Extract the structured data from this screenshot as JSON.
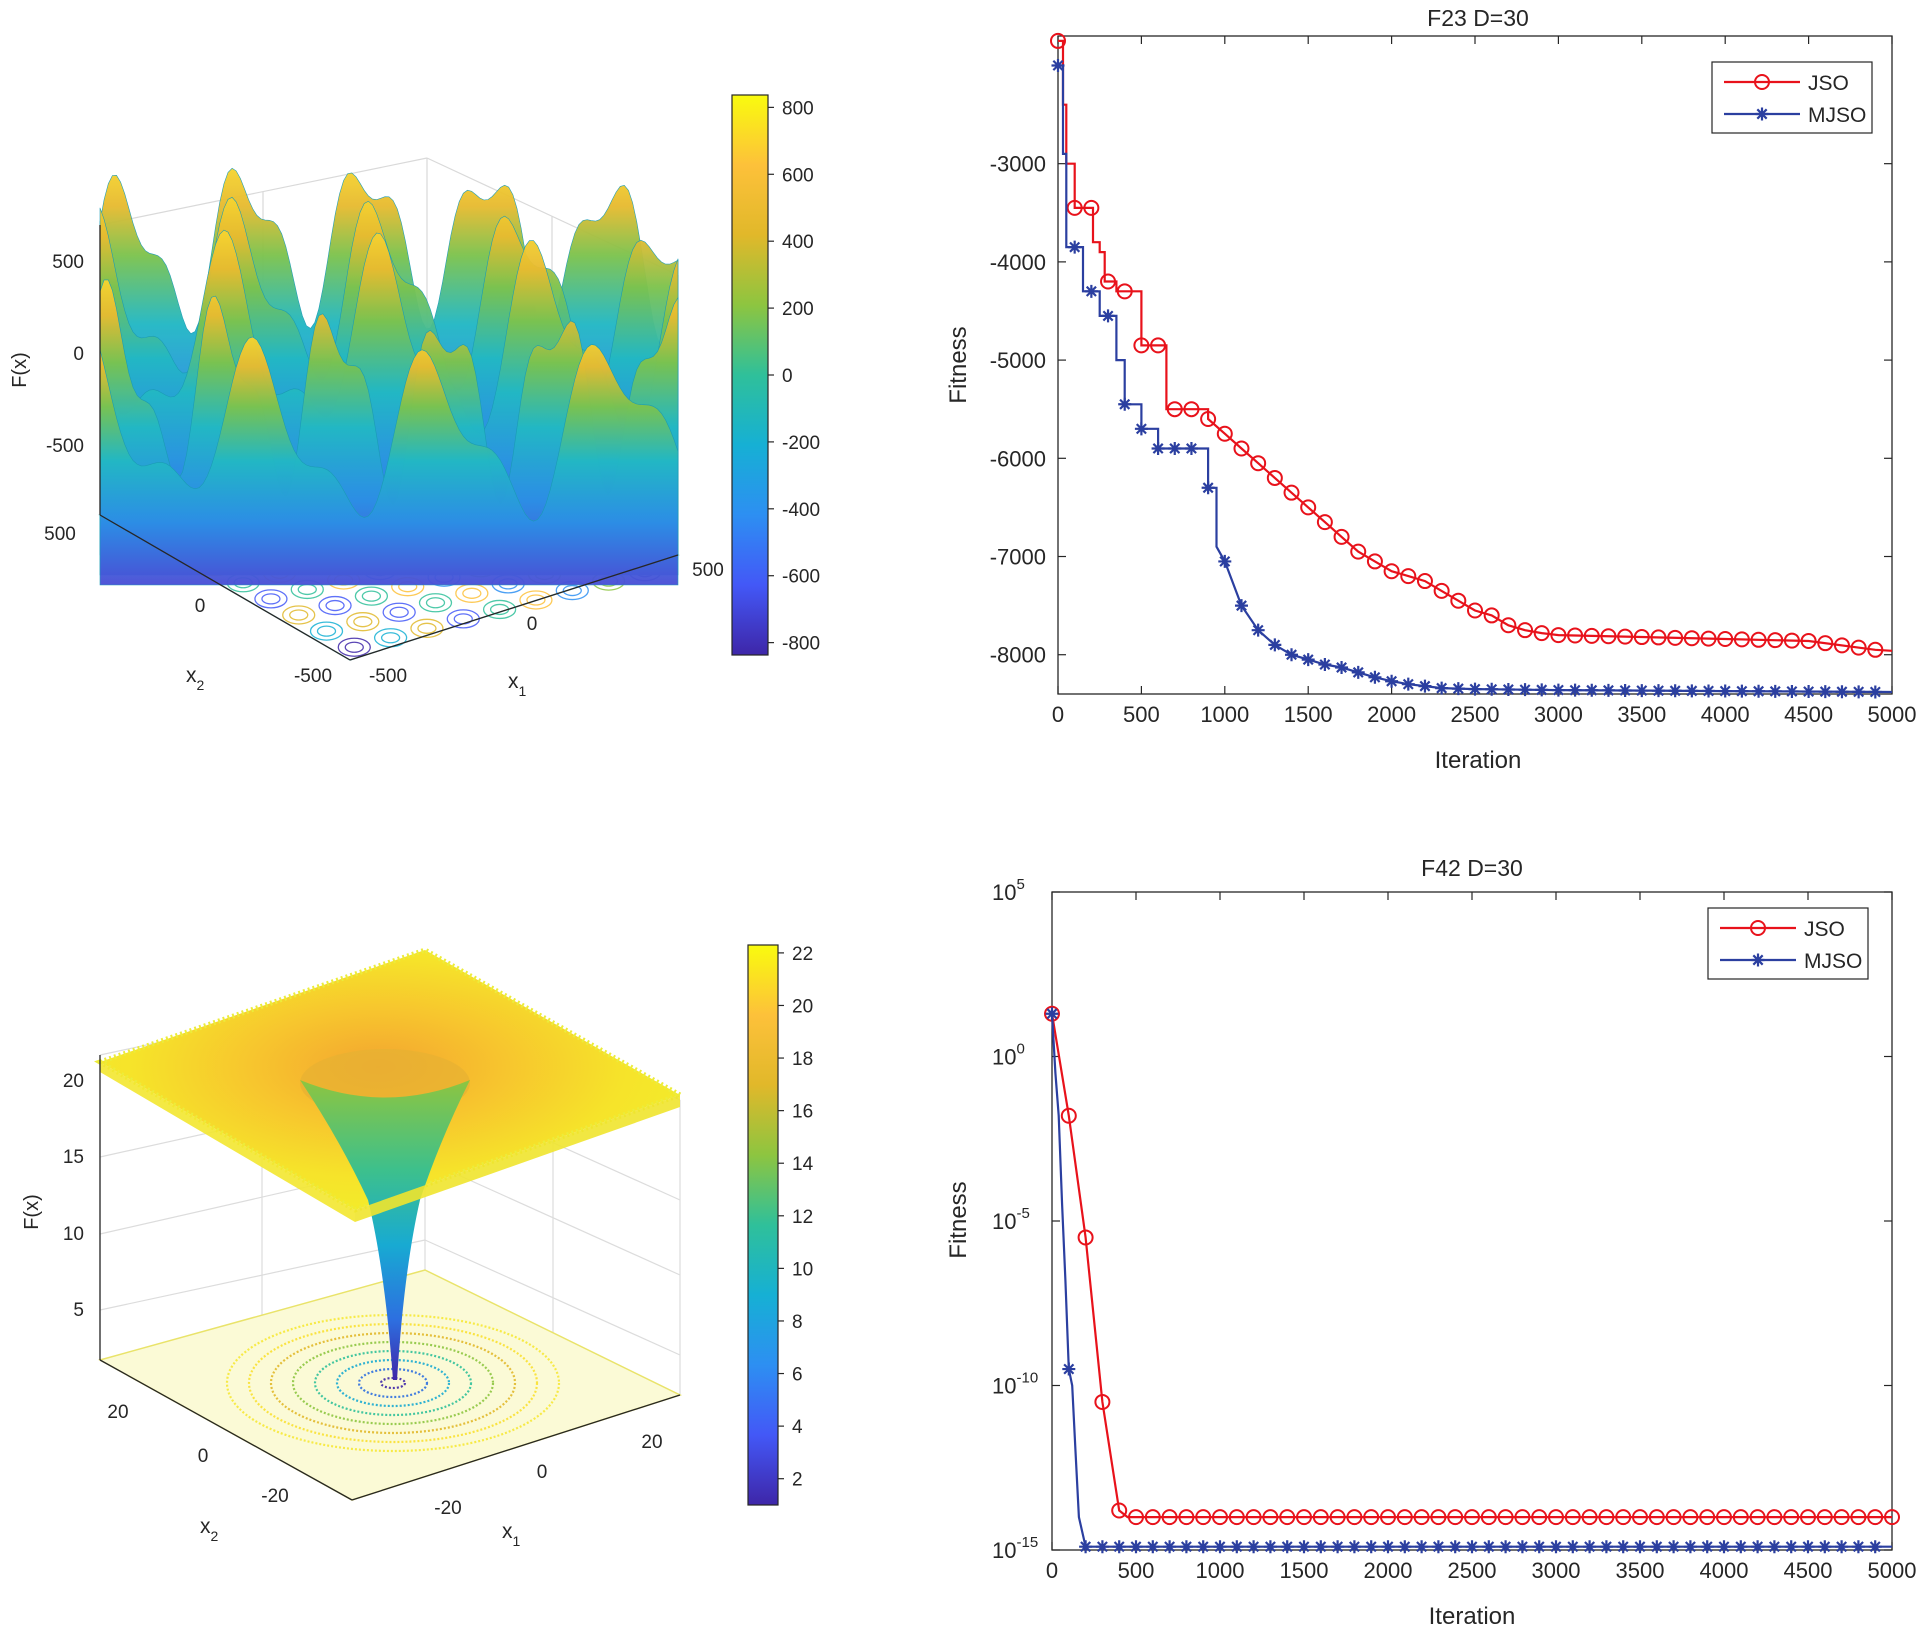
{
  "chart_data": [
    {
      "type": "surface",
      "id": "surface-f23",
      "zlabel": "F(x)",
      "xlabel": "x",
      "xlabel_sub": "1",
      "ylabel": "x",
      "ylabel_sub": "2",
      "x_ticks": [
        "-500",
        "0",
        "500"
      ],
      "y_ticks": [
        "-500",
        "0",
        "500"
      ],
      "z_ticks": [
        "-500",
        "0",
        "500"
      ],
      "colorbar_ticks": [
        "800",
        "600",
        "400",
        "200",
        "0",
        "-200",
        "-400",
        "-600",
        "-800"
      ],
      "colorbar_range": [
        -837,
        837
      ],
      "colormap": [
        "#3e26a8",
        "#4358f7",
        "#2d8ff2",
        "#16b0d4",
        "#2fc09a",
        "#8dc540",
        "#e1b82a",
        "#fdc13a",
        "#f9fb0e"
      ]
    },
    {
      "type": "line",
      "id": "line-f23",
      "title": "F23 D=30",
      "xlabel": "Iteration",
      "ylabel": "Fitness",
      "xlim": [
        0,
        5000
      ],
      "ylim": [
        -8400,
        -1700
      ],
      "x_ticks": [
        "0",
        "500",
        "1000",
        "1500",
        "2000",
        "2500",
        "3000",
        "3500",
        "4000",
        "4500",
        "5000"
      ],
      "y_ticks": [
        "-3000",
        "-4000",
        "-5000",
        "-6000",
        "-7000",
        "-8000"
      ],
      "legend": {
        "placement": "top-right"
      },
      "series": [
        {
          "name": "JSO",
          "color": "#e8121b",
          "marker": "circle",
          "x": [
            0,
            30,
            30,
            50,
            50,
            100,
            100,
            210,
            210,
            250,
            250,
            280,
            280,
            350,
            350,
            500,
            500,
            650,
            650,
            700,
            700,
            900,
            900,
            1000,
            1100,
            1200,
            1300,
            1400,
            1500,
            1600,
            1700,
            1800,
            1900,
            2000,
            2100,
            2200,
            2300,
            2400,
            2500,
            2600,
            2700,
            2800,
            2900,
            3000,
            3500,
            4000,
            4500,
            4900,
            5000
          ],
          "y": [
            -1750,
            -1750,
            -2400,
            -2400,
            -3000,
            -3000,
            -3450,
            -3450,
            -3800,
            -3800,
            -3900,
            -3900,
            -4200,
            -4200,
            -4300,
            -4300,
            -4850,
            -4850,
            -5500,
            -5500,
            -5500,
            -5500,
            -5600,
            -5750,
            -5900,
            -6050,
            -6200,
            -6350,
            -6500,
            -6650,
            -6800,
            -6950,
            -7050,
            -7150,
            -7200,
            -7250,
            -7350,
            -7450,
            -7550,
            -7600,
            -7700,
            -7750,
            -7780,
            -7800,
            -7820,
            -7840,
            -7860,
            -7950,
            -7960
          ],
          "marker_x": [
            0,
            100,
            200,
            300,
            400,
            500,
            600,
            700,
            800,
            900,
            1000,
            1100,
            1200,
            1300,
            1400,
            1500,
            1600,
            1700,
            1800,
            1900,
            2000,
            2100,
            2200,
            2300,
            2400,
            2500,
            2600,
            2700,
            2800,
            2900,
            3000,
            3100,
            3200,
            3300,
            3400,
            3500,
            3600,
            3700,
            3800,
            3900,
            4000,
            4100,
            4200,
            4300,
            4400,
            4500,
            4600,
            4700,
            4800,
            4900
          ]
        },
        {
          "name": "MJSO",
          "color": "#2b3fa0",
          "marker": "star",
          "x": [
            0,
            30,
            30,
            50,
            50,
            150,
            150,
            250,
            250,
            350,
            350,
            400,
            400,
            500,
            500,
            600,
            600,
            900,
            900,
            950,
            950,
            1000,
            1100,
            1200,
            1300,
            1400,
            1500,
            1600,
            1700,
            1800,
            1900,
            2000,
            2100,
            2200,
            2300,
            2500,
            3000,
            4000,
            5000
          ],
          "y": [
            -2000,
            -2000,
            -2900,
            -2900,
            -3850,
            -3850,
            -4300,
            -4300,
            -4550,
            -4550,
            -5000,
            -5000,
            -5450,
            -5450,
            -5700,
            -5700,
            -5900,
            -5900,
            -6300,
            -6300,
            -6900,
            -7050,
            -7500,
            -7750,
            -7900,
            -8000,
            -8050,
            -8100,
            -8130,
            -8180,
            -8230,
            -8270,
            -8300,
            -8320,
            -8340,
            -8350,
            -8360,
            -8370,
            -8380
          ],
          "marker_x": [
            0,
            100,
            200,
            300,
            400,
            500,
            600,
            700,
            800,
            900,
            1000,
            1100,
            1200,
            1300,
            1400,
            1500,
            1600,
            1700,
            1800,
            1900,
            2000,
            2100,
            2200,
            2300,
            2400,
            2500,
            2600,
            2700,
            2800,
            2900,
            3000,
            3100,
            3200,
            3300,
            3400,
            3500,
            3600,
            3700,
            3800,
            3900,
            4000,
            4100,
            4200,
            4300,
            4400,
            4500,
            4600,
            4700,
            4800,
            4900
          ]
        }
      ]
    },
    {
      "type": "surface",
      "id": "surface-f42",
      "zlabel": "F(x)",
      "xlabel": "x",
      "xlabel_sub": "1",
      "ylabel": "x",
      "ylabel_sub": "2",
      "x_ticks": [
        "-20",
        "0",
        "20"
      ],
      "y_ticks": [
        "-20",
        "0",
        "20"
      ],
      "z_ticks": [
        "5",
        "10",
        "15",
        "20"
      ],
      "colorbar_ticks": [
        "22",
        "20",
        "18",
        "16",
        "14",
        "12",
        "10",
        "8",
        "6",
        "4",
        "2"
      ],
      "colorbar_range": [
        1,
        22.3
      ],
      "colormap": [
        "#3e26a8",
        "#4358f7",
        "#2d8ff2",
        "#16b0d4",
        "#2fc09a",
        "#8dc540",
        "#e1b82a",
        "#fdc13a",
        "#f9fb0e"
      ]
    },
    {
      "type": "line",
      "id": "line-f42",
      "title": "F42 D=30",
      "xlabel": "Iteration",
      "ylabel": "Fitness",
      "yscale": "log",
      "xlim": [
        0,
        5000
      ],
      "ylim_log10": [
        -15,
        5
      ],
      "x_ticks": [
        "0",
        "500",
        "1000",
        "1500",
        "2000",
        "2500",
        "3000",
        "3500",
        "4000",
        "4500",
        "5000"
      ],
      "y_ticks": [
        {
          "base": "10",
          "exp": "5"
        },
        {
          "base": "10",
          "exp": "0"
        },
        {
          "base": "10",
          "exp": "-5"
        },
        {
          "base": "10",
          "exp": "-10"
        },
        {
          "base": "10",
          "exp": "-15"
        }
      ],
      "legend": {
        "placement": "top-right"
      },
      "series": [
        {
          "name": "JSO",
          "color": "#e8121b",
          "marker": "circle",
          "x": [
            0,
            100,
            200,
            300,
            400,
            450,
            500,
            5000
          ],
          "log10_y": [
            1.3,
            -1.8,
            -5.5,
            -10.5,
            -13.8,
            -14.0,
            -14.0,
            -14.0
          ],
          "marker_x": [
            0,
            100,
            200,
            300,
            400,
            500,
            600,
            700,
            800,
            900,
            1000,
            1100,
            1200,
            1300,
            1400,
            1500,
            1600,
            1700,
            1800,
            1900,
            2000,
            2100,
            2200,
            2300,
            2400,
            2500,
            2600,
            2700,
            2800,
            2900,
            3000,
            3100,
            3200,
            3300,
            3400,
            3500,
            3600,
            3700,
            3800,
            3900,
            4000,
            4100,
            4200,
            4300,
            4400,
            4500,
            4600,
            4700,
            4800,
            4900,
            5000
          ]
        },
        {
          "name": "MJSO",
          "color": "#2b3fa0",
          "marker": "star",
          "x": [
            0,
            20,
            20,
            40,
            40,
            60,
            80,
            100,
            120,
            140,
            160,
            200,
            5000
          ],
          "log10_y": [
            1.3,
            -0.5,
            -0.5,
            -1.8,
            -1.8,
            -4.5,
            -6.8,
            -9.5,
            -10.0,
            -12.0,
            -14.0,
            -14.9,
            -14.9
          ],
          "marker_x": [
            0,
            100,
            200,
            300,
            400,
            500,
            600,
            700,
            800,
            900,
            1000,
            1100,
            1200,
            1300,
            1400,
            1500,
            1600,
            1700,
            1800,
            1900,
            2000,
            2100,
            2200,
            2300,
            2400,
            2500,
            2600,
            2700,
            2800,
            2900,
            3000,
            3100,
            3200,
            3300,
            3400,
            3500,
            3600,
            3700,
            3800,
            3900,
            4000,
            4100,
            4200,
            4300,
            4400,
            4500,
            4600,
            4700,
            4800,
            4900
          ]
        }
      ]
    }
  ]
}
